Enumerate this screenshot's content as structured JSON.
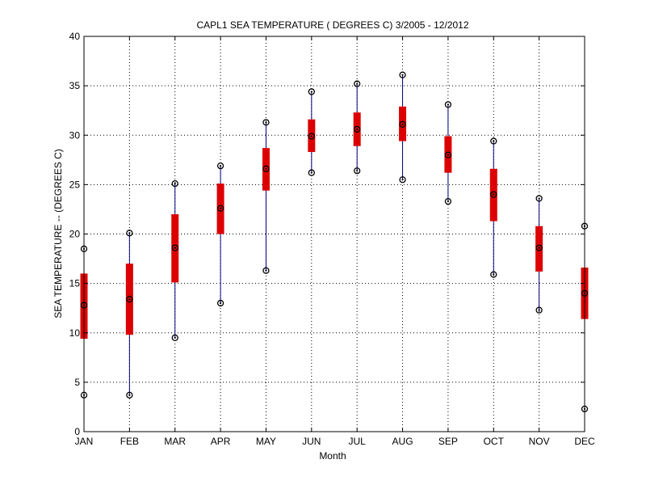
{
  "chart_data": {
    "type": "boxplot",
    "title": "CAPL1  SEA TEMPERATURE ( DEGREES C) 3/2005 - 12/2012",
    "xlabel": "Month",
    "ylabel": "SEA TEMPERATURE -- (DEGREES C)",
    "ylim": [
      0,
      40
    ],
    "yticks": [
      0,
      5,
      10,
      15,
      20,
      25,
      30,
      35,
      40
    ],
    "grid": true,
    "categories": [
      "JAN",
      "FEB",
      "MAR",
      "APR",
      "MAY",
      "JUN",
      "JUL",
      "AUG",
      "SEP",
      "OCT",
      "NOV",
      "DEC"
    ],
    "series": [
      {
        "min": [
          3.7,
          3.7,
          9.5,
          13.0,
          16.3,
          26.2,
          26.4,
          25.5,
          23.3,
          15.9,
          12.3,
          2.3
        ],
        "q1": [
          9.4,
          9.8,
          15.1,
          20.0,
          24.4,
          28.3,
          28.9,
          29.4,
          26.2,
          21.3,
          16.2,
          11.4
        ],
        "median": [
          12.8,
          13.4,
          18.6,
          22.6,
          26.6,
          29.9,
          30.6,
          31.1,
          28.0,
          24.0,
          18.6,
          14.0
        ],
        "q3": [
          16.0,
          17.0,
          22.0,
          25.1,
          28.7,
          31.6,
          32.3,
          32.9,
          29.9,
          26.6,
          20.8,
          16.6
        ],
        "max": [
          18.5,
          20.1,
          25.1,
          26.9,
          31.3,
          34.4,
          35.2,
          36.1,
          33.1,
          29.4,
          23.6,
          20.8
        ]
      }
    ],
    "colors": {
      "box": "#dd0000",
      "whisker": "#000080",
      "marker": "#000000",
      "grid": "#000000"
    }
  }
}
